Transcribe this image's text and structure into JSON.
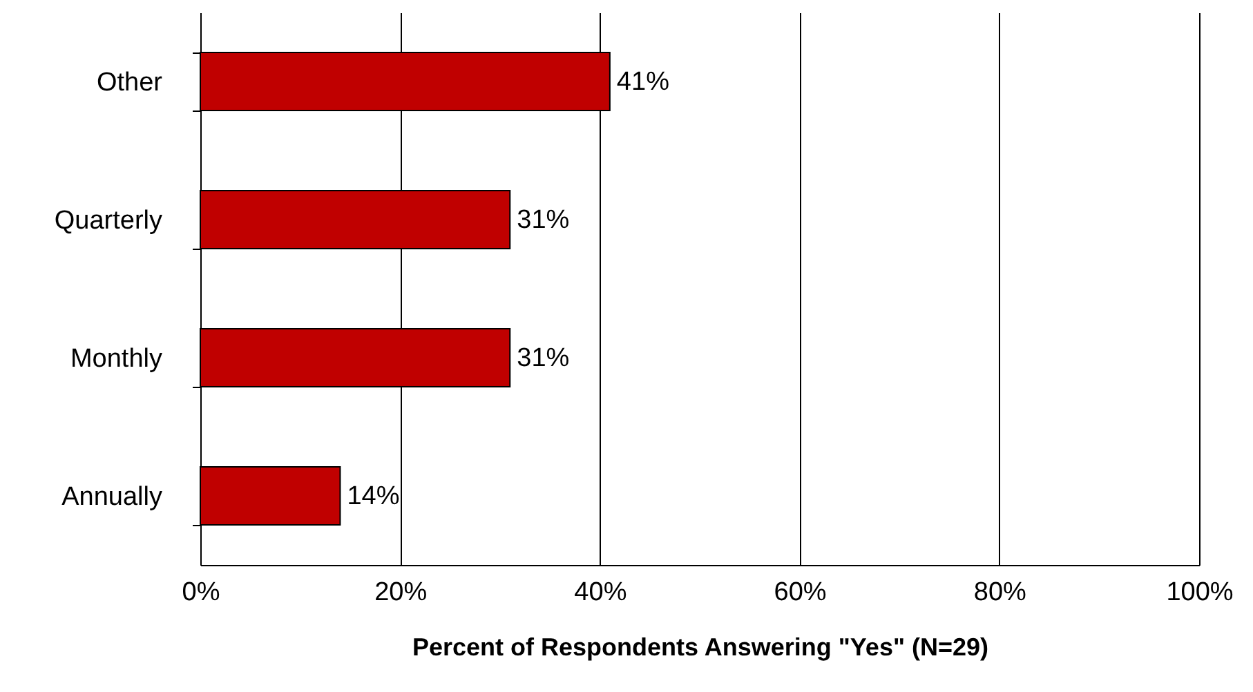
{
  "chart_data": {
    "type": "bar",
    "orientation": "horizontal",
    "xlabel": "Percent of Respondents Answering \"Yes\" (N=29)",
    "categories": [
      "Other",
      "Quarterly",
      "Monthly",
      "Annually"
    ],
    "values": [
      41,
      31,
      31,
      14
    ],
    "value_labels": [
      "41%",
      "31%",
      "31%",
      "14%"
    ],
    "color": "#c00000",
    "xlim": [
      0,
      100
    ],
    "xticks": [
      {
        "value": 0,
        "label": "0%"
      },
      {
        "value": 20,
        "label": "20%"
      },
      {
        "value": 40,
        "label": "40%"
      },
      {
        "value": 60,
        "label": "60%"
      },
      {
        "value": 80,
        "label": "80%"
      },
      {
        "value": 100,
        "label": "100%"
      }
    ],
    "grid": "x"
  }
}
